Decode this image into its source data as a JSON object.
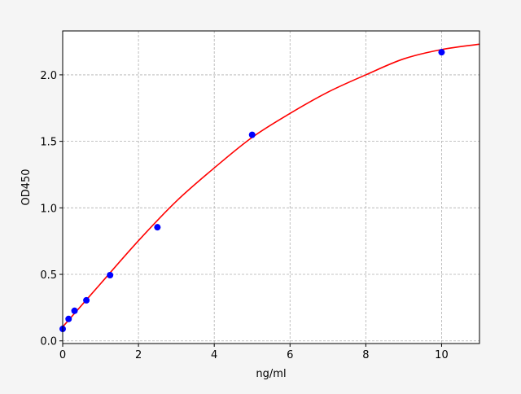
{
  "chart_data": {
    "type": "scatter",
    "title": "",
    "xlabel": "ng/ml",
    "ylabel": "OD450",
    "xlim": [
      0,
      11
    ],
    "ylim": [
      -0.02,
      2.33
    ],
    "xticks": [
      0,
      2,
      4,
      6,
      8,
      10
    ],
    "xtick_labels": [
      "0",
      "2",
      "4",
      "6",
      "8",
      "10"
    ],
    "yticks": [
      0,
      0.5,
      1,
      1.5,
      2
    ],
    "ytick_labels": [
      "0.0",
      "0.5",
      "1.0",
      "1.5",
      "2.0"
    ],
    "grid": true,
    "points": {
      "color": "#0000ff",
      "x": [
        0,
        0.156,
        0.3125,
        0.625,
        1.25,
        2.5,
        5,
        10
      ],
      "y": [
        0.09,
        0.165,
        0.226,
        0.305,
        0.494,
        0.854,
        1.549,
        2.17
      ]
    },
    "fit_curve": {
      "color": "#ff0000",
      "x": [
        0,
        1,
        2,
        3,
        4,
        5,
        6,
        7,
        8,
        9,
        10,
        11
      ],
      "y": [
        0.105,
        0.43,
        0.753,
        1.05,
        1.3,
        1.53,
        1.71,
        1.87,
        2.0,
        2.12,
        2.19,
        2.23
      ]
    }
  }
}
